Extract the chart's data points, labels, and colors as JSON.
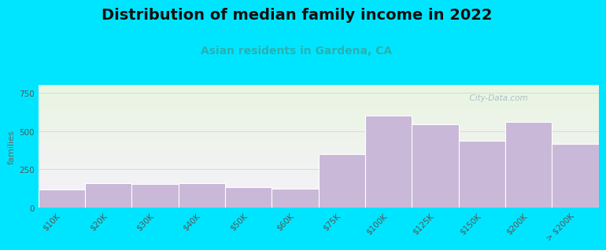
{
  "title": "Distribution of median family income in 2022",
  "subtitle": "Asian residents in Gardena, CA",
  "ylabel": "families",
  "categories": [
    "$10K",
    "$20K",
    "$30K",
    "$40K",
    "$50K",
    "$60K",
    "$75K",
    "$100K",
    "$125K",
    "$150K",
    "$200K",
    "> $200K"
  ],
  "values": [
    120,
    160,
    155,
    160,
    135,
    125,
    350,
    600,
    545,
    435,
    560,
    415
  ],
  "bar_color": "#c9b8d8",
  "bar_edge_color": "#ffffff",
  "background_color": "#00e5ff",
  "plot_bg_top": "#e8f5e0",
  "plot_bg_bottom": "#f5f0fa",
  "ylim": [
    0,
    800
  ],
  "yticks": [
    0,
    250,
    500,
    750
  ],
  "title_fontsize": 14,
  "subtitle_fontsize": 10,
  "subtitle_color": "#2ab0b0",
  "ylabel_fontsize": 8,
  "tick_label_fontsize": 7.5,
  "watermark_text": "  City-Data.com",
  "watermark_color": "#a0b8c0"
}
